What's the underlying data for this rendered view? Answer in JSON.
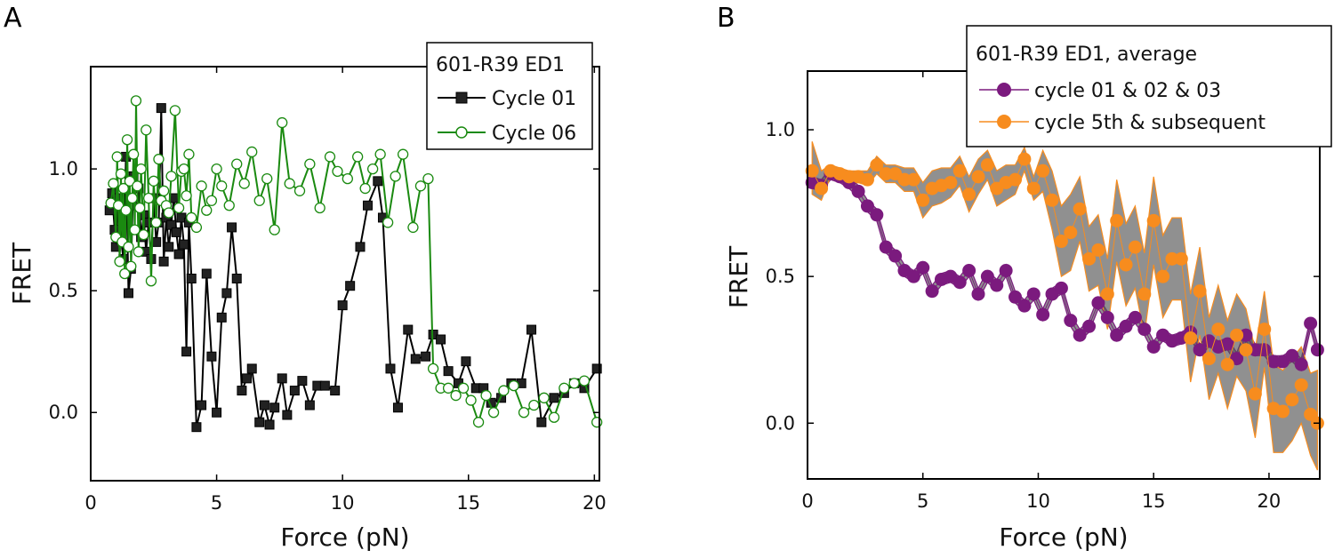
{
  "chart_data": [
    {
      "panel": "A",
      "type": "line",
      "xlabel": "Force (pN)",
      "ylabel": "FRET",
      "xlim": [
        0,
        20.2
      ],
      "ylim": [
        -0.28,
        1.42
      ],
      "xticks": [
        "0",
        "5",
        "10",
        "15",
        "20"
      ],
      "yticks": [
        "0.0",
        "0.5",
        "1.0"
      ],
      "legend": {
        "title": "601-R39 ED1",
        "placement": "top-right"
      },
      "series": [
        {
          "name": "Cycle 01",
          "color": "#000000",
          "marker": "filled-square",
          "x": [
            0.75,
            0.85,
            0.95,
            1.0,
            1.1,
            1.2,
            1.3,
            1.4,
            1.5,
            1.6,
            1.7,
            1.8,
            1.9,
            2.0,
            2.1,
            2.2,
            2.3,
            2.4,
            2.5,
            2.6,
            2.7,
            2.8,
            2.9,
            3.0,
            3.1,
            3.2,
            3.3,
            3.4,
            3.5,
            3.6,
            3.7,
            3.8,
            3.9,
            4.0,
            4.2,
            4.4,
            4.6,
            4.8,
            5.0,
            5.2,
            5.4,
            5.6,
            5.8,
            6.0,
            6.2,
            6.4,
            6.7,
            6.9,
            7.1,
            7.3,
            7.6,
            7.8,
            8.1,
            8.4,
            8.7,
            9.0,
            9.3,
            9.7,
            10.0,
            10.3,
            10.7,
            11.0,
            11.4,
            11.6,
            11.9,
            12.2,
            12.6,
            12.9,
            13.3,
            13.6,
            13.9,
            14.2,
            14.6,
            14.9,
            15.3,
            15.6,
            15.9,
            16.3,
            16.7,
            17.1,
            17.5,
            17.9,
            18.4,
            18.8,
            19.2,
            19.6,
            20.1
          ],
          "y": [
            0.83,
            0.9,
            0.75,
            0.68,
            0.88,
            0.71,
            0.63,
            1.05,
            0.49,
            0.59,
            0.97,
            0.85,
            0.92,
            0.72,
            0.81,
            0.66,
            0.78,
            0.63,
            0.88,
            0.7,
            0.78,
            1.25,
            0.62,
            0.8,
            0.68,
            0.77,
            0.88,
            0.74,
            0.65,
            0.8,
            0.69,
            0.25,
            0.78,
            0.55,
            -0.06,
            0.03,
            0.57,
            0.23,
            0.0,
            0.39,
            0.49,
            0.76,
            0.55,
            0.09,
            0.14,
            0.18,
            -0.04,
            0.03,
            -0.05,
            0.02,
            0.14,
            -0.01,
            0.09,
            0.13,
            0.03,
            0.11,
            0.11,
            0.09,
            0.44,
            0.52,
            0.68,
            0.85,
            0.95,
            0.8,
            0.18,
            0.02,
            0.34,
            0.22,
            0.23,
            0.32,
            0.3,
            0.17,
            0.12,
            0.21,
            0.1,
            0.1,
            0.04,
            0.06,
            0.12,
            0.12,
            0.34,
            -0.04,
            0.06,
            0.08,
            0.12,
            0.1,
            0.18
          ]
        },
        {
          "name": "Cycle 06",
          "color": "#1a8a10",
          "marker": "open-circle",
          "x": [
            0.8,
            0.9,
            1.0,
            1.05,
            1.1,
            1.15,
            1.2,
            1.25,
            1.3,
            1.35,
            1.4,
            1.45,
            1.5,
            1.55,
            1.6,
            1.65,
            1.7,
            1.75,
            1.8,
            1.85,
            1.9,
            1.95,
            2.0,
            2.1,
            2.2,
            2.3,
            2.4,
            2.5,
            2.6,
            2.7,
            2.8,
            2.9,
            3.0,
            3.1,
            3.2,
            3.35,
            3.5,
            3.6,
            3.7,
            3.8,
            3.9,
            4.0,
            4.2,
            4.4,
            4.6,
            4.8,
            5.0,
            5.2,
            5.5,
            5.8,
            6.1,
            6.4,
            6.7,
            7.0,
            7.3,
            7.6,
            7.9,
            8.3,
            8.7,
            9.1,
            9.5,
            9.8,
            10.2,
            10.6,
            10.9,
            11.2,
            11.5,
            11.8,
            12.1,
            12.4,
            12.8,
            13.1,
            13.4,
            13.6,
            13.9,
            14.2,
            14.5,
            14.8,
            15.1,
            15.4,
            15.7,
            16.0,
            16.4,
            16.8,
            17.2,
            17.6,
            18.0,
            18.4,
            18.8,
            19.2,
            19.6,
            20.1
          ],
          "y": [
            0.86,
            0.94,
            0.72,
            1.05,
            0.85,
            0.62,
            0.98,
            0.7,
            0.92,
            0.57,
            0.83,
            1.12,
            0.68,
            0.95,
            0.6,
            0.88,
            1.06,
            0.75,
            1.28,
            0.93,
            0.66,
            0.84,
            1.0,
            0.73,
            1.16,
            0.88,
            0.54,
            0.95,
            0.78,
            1.04,
            0.87,
            0.91,
            0.85,
            0.82,
            0.97,
            1.24,
            0.84,
            0.99,
            1.0,
            0.89,
            1.06,
            0.8,
            0.76,
            0.93,
            0.83,
            0.87,
            1.0,
            0.93,
            0.85,
            1.02,
            0.94,
            1.07,
            0.87,
            0.96,
            0.75,
            1.19,
            0.94,
            0.91,
            1.02,
            0.84,
            1.05,
            0.99,
            0.96,
            1.05,
            0.92,
            1.0,
            1.06,
            0.78,
            0.97,
            1.06,
            0.76,
            0.93,
            0.96,
            0.18,
            0.1,
            0.1,
            0.07,
            0.1,
            0.05,
            -0.04,
            0.07,
            0.0,
            0.09,
            0.11,
            0.0,
            0.03,
            0.06,
            -0.02,
            0.1,
            0.12,
            0.13,
            -0.04
          ]
        }
      ]
    },
    {
      "panel": "B",
      "type": "line",
      "xlabel": "Force (pN)",
      "ylabel": "FRET",
      "xlim": [
        0,
        22.2
      ],
      "ylim": [
        -0.19,
        1.2
      ],
      "xticks": [
        "0",
        "5",
        "10",
        "15",
        "20"
      ],
      "yticks": [
        "0.0",
        "0.5",
        "1.0"
      ],
      "legend": {
        "title": "601-R39 ED1, average",
        "placement": "top-right"
      },
      "series": [
        {
          "name": "cycle 01 & 02 & 03",
          "color": "#7b1a7e",
          "marker": "filled-circle",
          "x": [
            0.2,
            0.6,
            1.0,
            1.4,
            1.8,
            2.2,
            2.6,
            3.0,
            3.4,
            3.8,
            4.2,
            4.6,
            5.0,
            5.4,
            5.8,
            6.2,
            6.6,
            7.0,
            7.4,
            7.8,
            8.2,
            8.6,
            9.0,
            9.4,
            9.8,
            10.2,
            10.6,
            11.0,
            11.4,
            11.8,
            12.2,
            12.6,
            13.0,
            13.4,
            13.8,
            14.2,
            14.6,
            15.0,
            15.4,
            15.8,
            16.2,
            16.6,
            17.0,
            17.4,
            17.8,
            18.2,
            18.6,
            19.0,
            19.4,
            19.8,
            20.2,
            20.6,
            21.0,
            21.4,
            21.8,
            22.1
          ],
          "y": [
            0.82,
            0.81,
            0.85,
            0.84,
            0.82,
            0.79,
            0.74,
            0.71,
            0.6,
            0.57,
            0.52,
            0.5,
            0.53,
            0.45,
            0.49,
            0.5,
            0.48,
            0.52,
            0.44,
            0.5,
            0.47,
            0.52,
            0.43,
            0.4,
            0.44,
            0.37,
            0.44,
            0.46,
            0.35,
            0.3,
            0.33,
            0.41,
            0.36,
            0.3,
            0.33,
            0.36,
            0.32,
            0.26,
            0.3,
            0.28,
            0.29,
            0.31,
            0.25,
            0.28,
            0.26,
            0.27,
            0.22,
            0.3,
            0.25,
            0.25,
            0.21,
            0.21,
            0.23,
            0.2,
            0.34,
            0.25
          ],
          "band_upper": [
            0.84,
            0.83,
            0.87,
            0.86,
            0.84,
            0.81,
            0.76,
            0.73,
            0.62,
            0.59,
            0.54,
            0.52,
            0.55,
            0.47,
            0.51,
            0.52,
            0.5,
            0.54,
            0.46,
            0.52,
            0.49,
            0.54,
            0.45,
            0.42,
            0.46,
            0.39,
            0.46,
            0.48,
            0.37,
            0.32,
            0.35,
            0.43,
            0.38,
            0.32,
            0.35,
            0.38,
            0.34,
            0.28,
            0.32,
            0.3,
            0.31,
            0.33,
            0.27,
            0.3,
            0.28,
            0.29,
            0.24,
            0.32,
            0.27,
            0.27,
            0.23,
            0.23,
            0.25,
            0.22,
            0.36,
            0.27
          ],
          "band_lower": [
            0.8,
            0.79,
            0.83,
            0.82,
            0.8,
            0.77,
            0.72,
            0.69,
            0.58,
            0.55,
            0.5,
            0.48,
            0.51,
            0.43,
            0.47,
            0.48,
            0.46,
            0.5,
            0.42,
            0.48,
            0.45,
            0.5,
            0.41,
            0.38,
            0.42,
            0.35,
            0.42,
            0.44,
            0.33,
            0.28,
            0.31,
            0.39,
            0.34,
            0.28,
            0.31,
            0.34,
            0.3,
            0.24,
            0.28,
            0.26,
            0.27,
            0.29,
            0.23,
            0.26,
            0.24,
            0.25,
            0.2,
            0.28,
            0.23,
            0.23,
            0.19,
            0.19,
            0.21,
            0.18,
            0.32,
            0.23
          ]
        },
        {
          "name": "cycle 5th & subsequent",
          "color": "#f78c1e",
          "marker": "filled-circle",
          "x": [
            0.2,
            0.6,
            1.0,
            1.4,
            1.8,
            2.2,
            2.6,
            3.0,
            3.4,
            3.8,
            4.2,
            4.6,
            5.0,
            5.4,
            5.8,
            6.2,
            6.6,
            7.0,
            7.4,
            7.8,
            8.2,
            8.6,
            9.0,
            9.4,
            9.8,
            10.2,
            10.6,
            11.0,
            11.4,
            11.8,
            12.2,
            12.6,
            13.0,
            13.4,
            13.8,
            14.2,
            14.6,
            15.0,
            15.4,
            15.8,
            16.2,
            16.6,
            17.0,
            17.4,
            17.8,
            18.2,
            18.6,
            19.0,
            19.4,
            19.8,
            20.2,
            20.6,
            21.0,
            21.4,
            21.8,
            22.1
          ],
          "y": [
            0.86,
            0.8,
            0.86,
            0.85,
            0.84,
            0.84,
            0.83,
            0.88,
            0.85,
            0.85,
            0.83,
            0.83,
            0.76,
            0.8,
            0.81,
            0.82,
            0.86,
            0.78,
            0.84,
            0.88,
            0.8,
            0.82,
            0.83,
            0.9,
            0.8,
            0.86,
            0.76,
            0.62,
            0.65,
            0.73,
            0.56,
            0.59,
            0.44,
            0.69,
            0.54,
            0.6,
            0.44,
            0.69,
            0.5,
            0.56,
            0.56,
            0.29,
            0.45,
            0.22,
            0.32,
            0.2,
            0.3,
            0.25,
            0.1,
            0.32,
            0.05,
            0.04,
            0.08,
            0.13,
            0.03,
            0.0
          ],
          "band_upper": [
            0.96,
            0.86,
            0.88,
            0.87,
            0.86,
            0.86,
            0.86,
            0.91,
            0.88,
            0.88,
            0.87,
            0.87,
            0.82,
            0.86,
            0.87,
            0.87,
            0.91,
            0.84,
            0.9,
            0.93,
            0.86,
            0.88,
            0.88,
            0.94,
            0.84,
            0.93,
            0.86,
            0.74,
            0.78,
            0.84,
            0.67,
            0.71,
            0.56,
            0.83,
            0.68,
            0.74,
            0.58,
            0.84,
            0.64,
            0.7,
            0.7,
            0.44,
            0.6,
            0.36,
            0.47,
            0.35,
            0.44,
            0.39,
            0.25,
            0.45,
            0.2,
            0.18,
            0.22,
            0.26,
            0.17,
            0.18
          ],
          "band_lower": [
            0.78,
            0.76,
            0.84,
            0.83,
            0.82,
            0.82,
            0.81,
            0.85,
            0.82,
            0.82,
            0.79,
            0.79,
            0.7,
            0.74,
            0.75,
            0.77,
            0.81,
            0.72,
            0.78,
            0.83,
            0.74,
            0.76,
            0.78,
            0.86,
            0.76,
            0.79,
            0.66,
            0.5,
            0.52,
            0.62,
            0.45,
            0.47,
            0.32,
            0.55,
            0.4,
            0.46,
            0.3,
            0.54,
            0.36,
            0.42,
            0.42,
            0.14,
            0.3,
            0.08,
            0.17,
            0.05,
            0.16,
            0.11,
            -0.05,
            0.19,
            -0.1,
            -0.1,
            -0.06,
            0.0,
            -0.11,
            -0.16
          ]
        }
      ]
    }
  ]
}
